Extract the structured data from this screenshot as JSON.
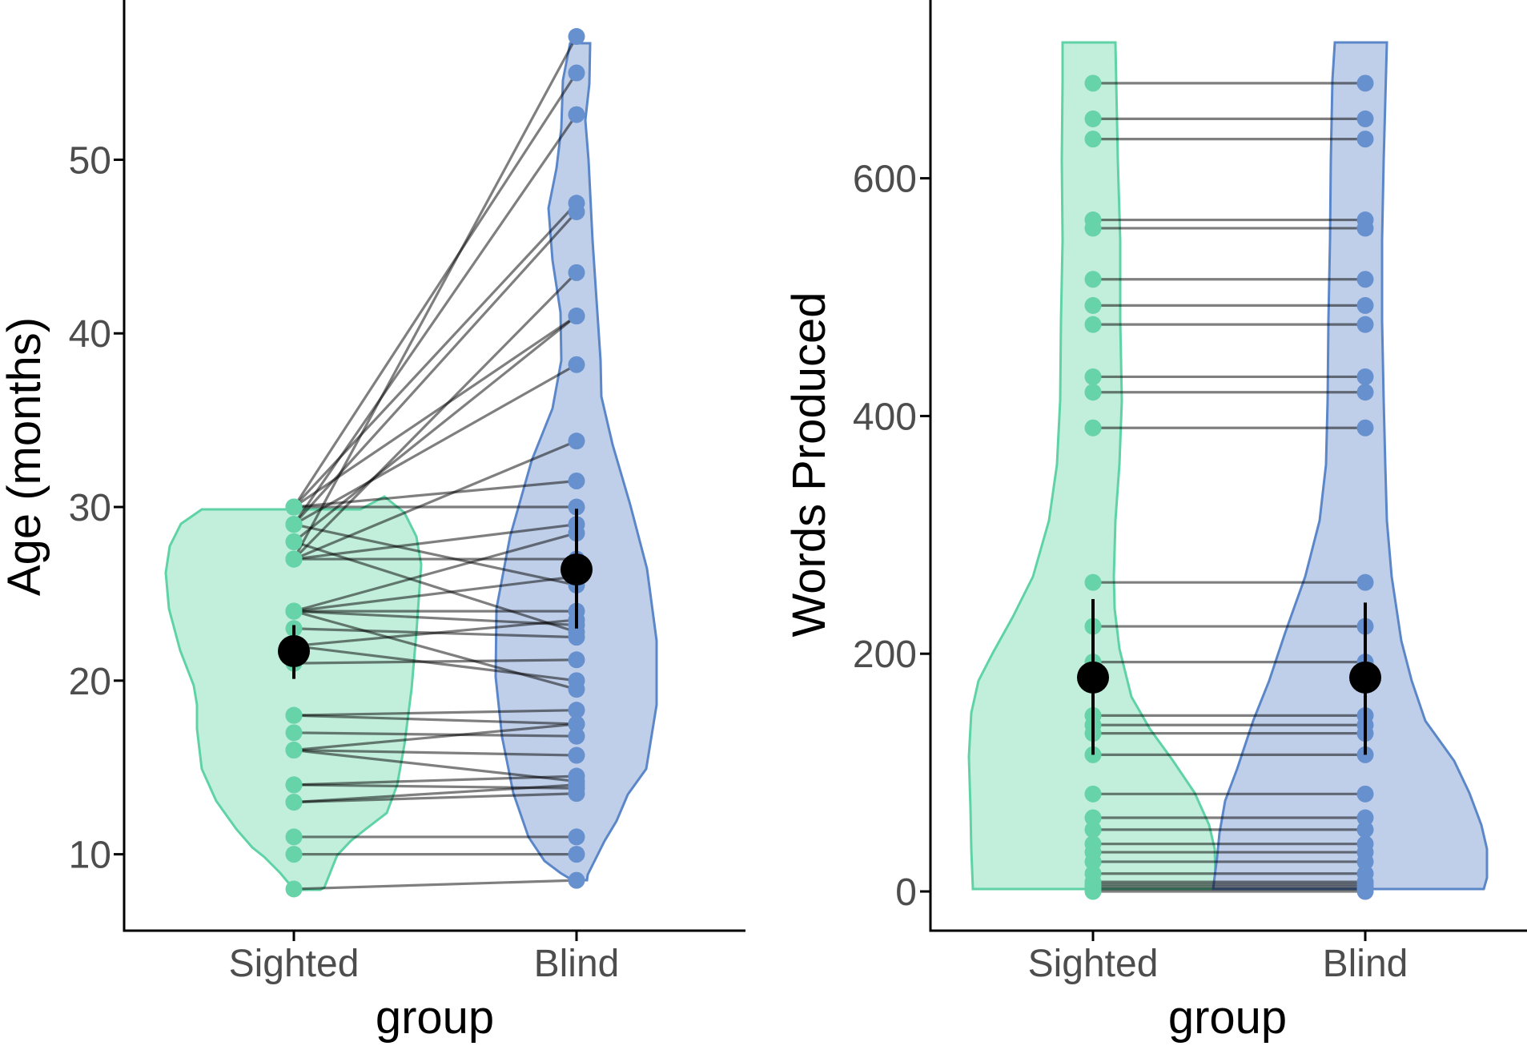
{
  "colors": {
    "sighted_fill": "#c2eedc",
    "sighted_stroke": "#5fd3a6",
    "sighted_point": "#66d3a8",
    "blind_fill": "#c0cfe9",
    "blind_stroke": "#5b87c9",
    "blind_point": "#6790cf",
    "summary": "#000000"
  },
  "chart_data": [
    {
      "type": "violin",
      "panel": "left",
      "xlabel": "group",
      "ylabel": "Age (months)",
      "categories": [
        "Sighted",
        "Blind"
      ],
      "ylim": [
        5.6,
        59.2
      ],
      "yticks": [
        10,
        20,
        30,
        40,
        50
      ],
      "pairs": [
        [
          8,
          8.5
        ],
        [
          10,
          10
        ],
        [
          11,
          11
        ],
        [
          13,
          13.5
        ],
        [
          13,
          14
        ],
        [
          14,
          13.8
        ],
        [
          14,
          14.5
        ],
        [
          16,
          15.7
        ],
        [
          16,
          17.5
        ],
        [
          16,
          14.2
        ],
        [
          17,
          16.8
        ],
        [
          18,
          17.5
        ],
        [
          18,
          18.3
        ],
        [
          21,
          21.2
        ],
        [
          22,
          20
        ],
        [
          22,
          23.5
        ],
        [
          23,
          22.5
        ],
        [
          24,
          23.2
        ],
        [
          24,
          24
        ],
        [
          24,
          26
        ],
        [
          24,
          19.5
        ],
        [
          24,
          28.5
        ],
        [
          27,
          27
        ],
        [
          27,
          29
        ],
        [
          27,
          33.8
        ],
        [
          28,
          22.8
        ],
        [
          29,
          25.5
        ],
        [
          29,
          38.2
        ],
        [
          30,
          30
        ],
        [
          30,
          31.5
        ],
        [
          30,
          41
        ],
        [
          27,
          43.5
        ],
        [
          28,
          41
        ],
        [
          29,
          47
        ],
        [
          30,
          47.5
        ],
        [
          29,
          52.6
        ],
        [
          30,
          55
        ],
        [
          27,
          57.1
        ]
      ],
      "summary": {
        "Sighted": {
          "mean": 21.7,
          "ci": [
            20.1,
            23.2
          ]
        },
        "Blind": {
          "mean": 26.4,
          "ci": [
            23,
            29.9
          ]
        }
      }
    },
    {
      "type": "violin",
      "panel": "right",
      "xlabel": "group",
      "ylabel": "Words Produced",
      "categories": [
        "Sighted",
        "Blind"
      ],
      "ylim": [
        -33,
        750
      ],
      "yticks": [
        0,
        200,
        400,
        600
      ],
      "pairs": [
        [
          0,
          0
        ],
        [
          2,
          2
        ],
        [
          4,
          4
        ],
        [
          6,
          6
        ],
        [
          8,
          8
        ],
        [
          15,
          15
        ],
        [
          25,
          25
        ],
        [
          33,
          33
        ],
        [
          40,
          40
        ],
        [
          52,
          52
        ],
        [
          62,
          62
        ],
        [
          82,
          82
        ],
        [
          115,
          115
        ],
        [
          133,
          133
        ],
        [
          140,
          140
        ],
        [
          148,
          148
        ],
        [
          193,
          193
        ],
        [
          223,
          223
        ],
        [
          260,
          260
        ],
        [
          390,
          390
        ],
        [
          420,
          420
        ],
        [
          433,
          433
        ],
        [
          477,
          477
        ],
        [
          493,
          493
        ],
        [
          515,
          515
        ],
        [
          558,
          558
        ],
        [
          565,
          565
        ],
        [
          633,
          633
        ],
        [
          650,
          650
        ],
        [
          680,
          680
        ]
      ],
      "summary": {
        "Sighted": {
          "mean": 180,
          "ci": [
            115,
            246
          ]
        },
        "Blind": {
          "mean": 180,
          "ci": [
            115,
            243
          ]
        }
      }
    }
  ]
}
